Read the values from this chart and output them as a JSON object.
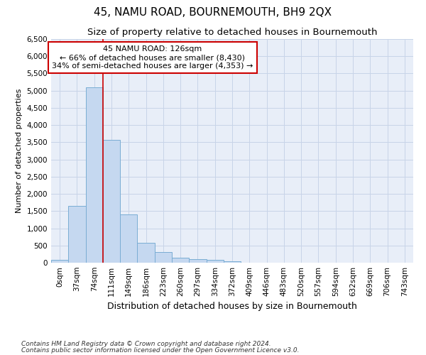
{
  "title": "45, NAMU ROAD, BOURNEMOUTH, BH9 2QX",
  "subtitle": "Size of property relative to detached houses in Bournemouth",
  "xlabel": "Distribution of detached houses by size in Bournemouth",
  "ylabel": "Number of detached properties",
  "footer_line1": "Contains HM Land Registry data © Crown copyright and database right 2024.",
  "footer_line2": "Contains public sector information licensed under the Open Government Licence v3.0.",
  "bar_labels": [
    "0sqm",
    "37sqm",
    "74sqm",
    "111sqm",
    "149sqm",
    "186sqm",
    "223sqm",
    "260sqm",
    "297sqm",
    "334sqm",
    "372sqm",
    "409sqm",
    "446sqm",
    "483sqm",
    "520sqm",
    "557sqm",
    "594sqm",
    "632sqm",
    "669sqm",
    "706sqm",
    "743sqm"
  ],
  "bar_values": [
    75,
    1650,
    5100,
    3575,
    1400,
    575,
    300,
    150,
    100,
    75,
    50,
    0,
    0,
    0,
    0,
    0,
    0,
    0,
    0,
    0,
    0
  ],
  "bar_color": "#c5d8f0",
  "bar_edge_color": "#7aadd4",
  "ylim": [
    0,
    6500
  ],
  "yticks": [
    0,
    500,
    1000,
    1500,
    2000,
    2500,
    3000,
    3500,
    4000,
    4500,
    5000,
    5500,
    6000,
    6500
  ],
  "grid_color": "#c8d4e8",
  "background_color": "#e8eef8",
  "vline_x": 2.5,
  "vline_color": "#cc0000",
  "annotation_text": "45 NAMU ROAD: 126sqm\n← 66% of detached houses are smaller (8,430)\n34% of semi-detached houses are larger (4,353) →",
  "annotation_box_color": "#ffffff",
  "annotation_box_edge_color": "#cc0000",
  "title_fontsize": 11,
  "subtitle_fontsize": 9.5,
  "xlabel_fontsize": 9,
  "ylabel_fontsize": 8,
  "tick_fontsize": 7.5,
  "annotation_fontsize": 8,
  "footer_fontsize": 6.5
}
